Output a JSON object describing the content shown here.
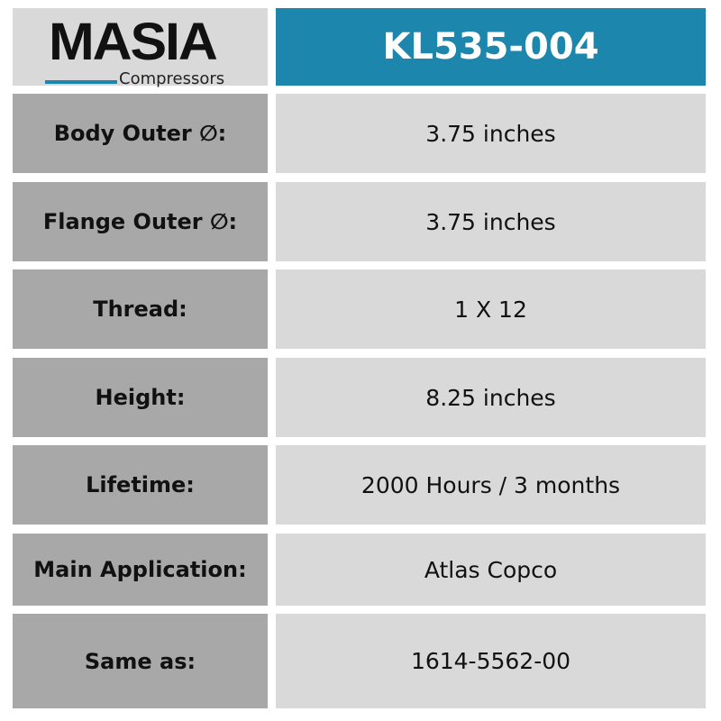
{
  "logo": {
    "brand": "MASIA",
    "tagline": "Compressors",
    "accent": "#1c86ad"
  },
  "title": "KL535-004",
  "rows": [
    {
      "label": "Body Outer ∅:",
      "value": "3.75 inches"
    },
    {
      "label": "Flange Outer ∅:",
      "value": "3.75 inches"
    },
    {
      "label": "Thread:",
      "value": "1 X 12"
    },
    {
      "label": "Height:",
      "value": "8.25 inches"
    },
    {
      "label": "Lifetime:",
      "value": "2000 Hours / 3 months"
    },
    {
      "label": "Main Application:",
      "value": "Atlas Copco"
    },
    {
      "label": "Same as:",
      "value": "1614-5562-00"
    }
  ]
}
